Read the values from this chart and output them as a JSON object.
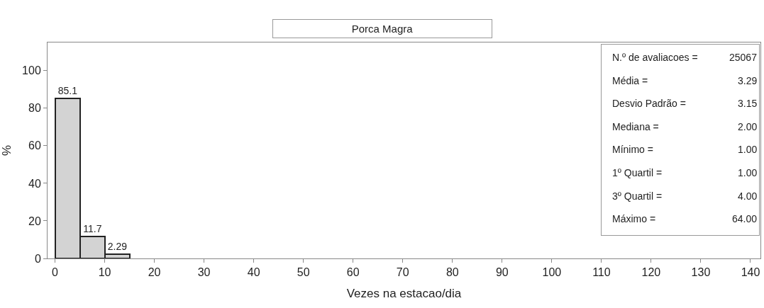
{
  "chart_data": {
    "type": "histogram",
    "title": "Porca Magra",
    "xlabel": "Vezes na estacao/dia",
    "ylabel": "%",
    "bins": [
      0,
      5,
      10,
      15
    ],
    "values": [
      85.1,
      11.7,
      2.29
    ],
    "color": "#d3d3d3",
    "data_labels": true,
    "xlim": [
      -1.5,
      142
    ],
    "xticks": [
      0,
      10,
      20,
      30,
      40,
      50,
      60,
      70,
      80,
      90,
      100,
      110,
      120,
      130,
      140
    ],
    "ylim": [
      0,
      115
    ],
    "yticks": [
      0,
      20,
      40,
      60,
      80,
      100
    ],
    "annotations": [
      "N.º de avaliacoes = 25067",
      "Média = 3.29",
      "Desvio Padrão = 3.15",
      "Mediana = 2.00",
      "Mínimo = 1.00",
      "1º Quartil = 1.00",
      "3º Quartil = 4.00",
      "Máximo = 64.00"
    ]
  }
}
